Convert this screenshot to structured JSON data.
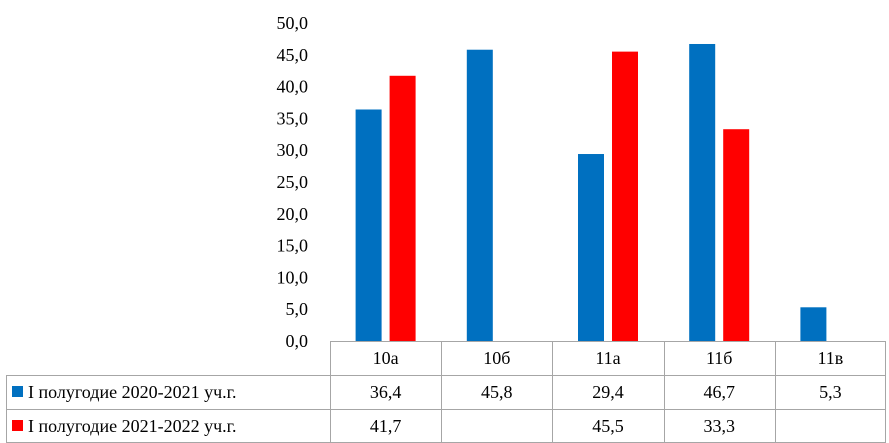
{
  "chart_data": {
    "type": "bar",
    "categories": [
      "10а",
      "10б",
      "11а",
      "11б",
      "11в"
    ],
    "series": [
      {
        "name": "I полугодие 2020-2021 уч.г.",
        "color": "#0070c0",
        "values": [
          36.4,
          45.8,
          29.4,
          46.7,
          5.3
        ],
        "value_labels": [
          "36,4",
          "45,8",
          "29,4",
          "46,7",
          "5,3"
        ]
      },
      {
        "name": "I полугодие 2021-2022  уч.г.",
        "color": "#ff0000",
        "values": [
          41.7,
          null,
          45.5,
          33.3,
          null
        ],
        "value_labels": [
          "41,7",
          "",
          "45,5",
          "33,3",
          ""
        ]
      }
    ],
    "ylim": [
      0,
      50
    ],
    "yticks": [
      "0,0",
      "5,0",
      "10,0",
      "15,0",
      "20,0",
      "25,0",
      "30,0",
      "35,0",
      "40,0",
      "45,0",
      "50,0"
    ],
    "grid": false,
    "data_table": true
  }
}
